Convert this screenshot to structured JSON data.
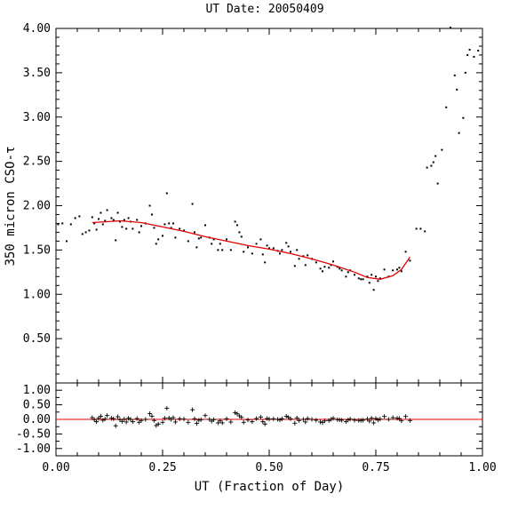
{
  "chart_data": {
    "type": "scatter",
    "title": "UT Date: 20050409",
    "xlabel": "UT (Fraction of Day)",
    "xlim": [
      0.0,
      1.0
    ],
    "x_ticks": [
      "0.00",
      "0.25",
      "0.50",
      "0.75",
      "1.00"
    ],
    "top_panel": {
      "ylabel": "350 micron CSO-τ",
      "ylim": [
        0.0,
        4.0
      ],
      "y_ticks": [
        "0.50",
        "1.00",
        "1.50",
        "2.00",
        "2.50",
        "3.00",
        "3.50",
        "4.00"
      ],
      "series": [
        {
          "values": [
            [
              0.005,
              1.79
            ],
            [
              0.015,
              1.8
            ],
            [
              0.025,
              1.6
            ],
            [
              0.035,
              1.79
            ],
            [
              0.045,
              1.86
            ],
            [
              0.055,
              1.88
            ],
            [
              0.062,
              1.68
            ],
            [
              0.07,
              1.7
            ],
            [
              0.078,
              1.72
            ],
            [
              0.085,
              1.87
            ],
            [
              0.09,
              1.8
            ],
            [
              0.095,
              1.73
            ],
            [
              0.1,
              1.85
            ],
            [
              0.105,
              1.92
            ],
            [
              0.11,
              1.79
            ],
            [
              0.115,
              1.83
            ],
            [
              0.12,
              1.95
            ],
            [
              0.13,
              1.86
            ],
            [
              0.135,
              1.84
            ],
            [
              0.14,
              1.61
            ],
            [
              0.145,
              1.92
            ],
            [
              0.15,
              1.82
            ],
            [
              0.155,
              1.76
            ],
            [
              0.16,
              1.84
            ],
            [
              0.165,
              1.74
            ],
            [
              0.17,
              1.86
            ],
            [
              0.175,
              1.82
            ],
            [
              0.18,
              1.74
            ],
            [
              0.19,
              1.84
            ],
            [
              0.195,
              1.7
            ],
            [
              0.2,
              1.77
            ],
            [
              0.21,
              1.8
            ],
            [
              0.22,
              2.0
            ],
            [
              0.225,
              1.9
            ],
            [
              0.23,
              1.75
            ],
            [
              0.235,
              1.57
            ],
            [
              0.24,
              1.62
            ],
            [
              0.25,
              1.66
            ],
            [
              0.255,
              1.79
            ],
            [
              0.26,
              2.14
            ],
            [
              0.265,
              1.8
            ],
            [
              0.27,
              1.75
            ],
            [
              0.275,
              1.8
            ],
            [
              0.28,
              1.64
            ],
            [
              0.29,
              1.74
            ],
            [
              0.3,
              1.72
            ],
            [
              0.31,
              1.6
            ],
            [
              0.32,
              2.02
            ],
            [
              0.325,
              1.7
            ],
            [
              0.33,
              1.53
            ],
            [
              0.335,
              1.63
            ],
            [
              0.34,
              1.64
            ],
            [
              0.35,
              1.78
            ],
            [
              0.36,
              1.64
            ],
            [
              0.365,
              1.57
            ],
            [
              0.37,
              1.62
            ],
            [
              0.38,
              1.5
            ],
            [
              0.385,
              1.57
            ],
            [
              0.39,
              1.5
            ],
            [
              0.4,
              1.62
            ],
            [
              0.41,
              1.5
            ],
            [
              0.42,
              1.82
            ],
            [
              0.425,
              1.78
            ],
            [
              0.43,
              1.7
            ],
            [
              0.435,
              1.65
            ],
            [
              0.44,
              1.48
            ],
            [
              0.45,
              1.53
            ],
            [
              0.46,
              1.46
            ],
            [
              0.47,
              1.57
            ],
            [
              0.48,
              1.62
            ],
            [
              0.485,
              1.45
            ],
            [
              0.49,
              1.36
            ],
            [
              0.495,
              1.55
            ],
            [
              0.5,
              1.52
            ],
            [
              0.51,
              1.52
            ],
            [
              0.52,
              1.49
            ],
            [
              0.525,
              1.46
            ],
            [
              0.53,
              1.5
            ],
            [
              0.54,
              1.58
            ],
            [
              0.545,
              1.54
            ],
            [
              0.55,
              1.48
            ],
            [
              0.56,
              1.32
            ],
            [
              0.565,
              1.5
            ],
            [
              0.57,
              1.4
            ],
            [
              0.58,
              1.43
            ],
            [
              0.585,
              1.33
            ],
            [
              0.59,
              1.44
            ],
            [
              0.6,
              1.4
            ],
            [
              0.61,
              1.36
            ],
            [
              0.62,
              1.29
            ],
            [
              0.625,
              1.26
            ],
            [
              0.63,
              1.31
            ],
            [
              0.64,
              1.3
            ],
            [
              0.645,
              1.33
            ],
            [
              0.65,
              1.37
            ],
            [
              0.66,
              1.31
            ],
            [
              0.665,
              1.29
            ],
            [
              0.67,
              1.27
            ],
            [
              0.68,
              1.2
            ],
            [
              0.685,
              1.25
            ],
            [
              0.69,
              1.27
            ],
            [
              0.7,
              1.22
            ],
            [
              0.71,
              1.18
            ],
            [
              0.715,
              1.17
            ],
            [
              0.72,
              1.17
            ],
            [
              0.73,
              1.2
            ],
            [
              0.735,
              1.13
            ],
            [
              0.74,
              1.22
            ],
            [
              0.745,
              1.05
            ],
            [
              0.75,
              1.2
            ],
            [
              0.755,
              1.15
            ],
            [
              0.76,
              1.18
            ],
            [
              0.77,
              1.28
            ],
            [
              0.78,
              1.2
            ],
            [
              0.79,
              1.27
            ],
            [
              0.8,
              1.28
            ],
            [
              0.805,
              1.3
            ],
            [
              0.81,
              1.26
            ],
            [
              0.82,
              1.48
            ],
            [
              0.83,
              1.38
            ],
            [
              0.845,
              1.74
            ],
            [
              0.855,
              1.74
            ],
            [
              0.865,
              1.71
            ],
            [
              0.87,
              2.43
            ],
            [
              0.88,
              2.45
            ],
            [
              0.885,
              2.49
            ],
            [
              0.89,
              2.56
            ],
            [
              0.895,
              2.25
            ],
            [
              0.905,
              2.63
            ],
            [
              0.915,
              3.11
            ],
            [
              0.925,
              4.01
            ],
            [
              0.935,
              3.47
            ],
            [
              0.94,
              3.31
            ],
            [
              0.945,
              2.82
            ],
            [
              0.955,
              2.99
            ],
            [
              0.96,
              3.5
            ],
            [
              0.965,
              3.7
            ],
            [
              0.97,
              3.76
            ],
            [
              0.98,
              3.68
            ],
            [
              0.99,
              3.75
            ]
          ]
        }
      ],
      "fit": {
        "x_range": [
          0.085,
          0.83
        ],
        "points": [
          [
            0.085,
            1.81
          ],
          [
            0.12,
            1.82
          ],
          [
            0.15,
            1.83
          ],
          [
            0.2,
            1.81
          ],
          [
            0.25,
            1.76
          ],
          [
            0.3,
            1.71
          ],
          [
            0.35,
            1.65
          ],
          [
            0.4,
            1.6
          ],
          [
            0.45,
            1.55
          ],
          [
            0.5,
            1.51
          ],
          [
            0.55,
            1.46
          ],
          [
            0.6,
            1.4
          ],
          [
            0.65,
            1.33
          ],
          [
            0.7,
            1.25
          ],
          [
            0.73,
            1.19
          ],
          [
            0.76,
            1.17
          ],
          [
            0.79,
            1.21
          ],
          [
            0.81,
            1.28
          ],
          [
            0.83,
            1.42
          ]
        ]
      }
    },
    "bottom_panel": {
      "ylim": [
        -1.25,
        1.25
      ],
      "y_ticks": [
        "1.00",
        "0.50",
        "0.00",
        "-0.50",
        "-1.00"
      ],
      "residuals": [
        [
          0.085,
          0.06
        ],
        [
          0.09,
          -0.01
        ],
        [
          0.095,
          -0.08
        ],
        [
          0.1,
          0.04
        ],
        [
          0.105,
          0.11
        ],
        [
          0.11,
          -0.03
        ],
        [
          0.115,
          0.01
        ],
        [
          0.12,
          0.13
        ],
        [
          0.13,
          0.04
        ],
        [
          0.135,
          0.02
        ],
        [
          0.14,
          -0.22
        ],
        [
          0.145,
          0.09
        ],
        [
          0.15,
          -0.01
        ],
        [
          0.155,
          -0.07
        ],
        [
          0.16,
          0.01
        ],
        [
          0.165,
          -0.09
        ],
        [
          0.17,
          0.04
        ],
        [
          0.175,
          0.0
        ],
        [
          0.18,
          -0.08
        ],
        [
          0.19,
          0.03
        ],
        [
          0.195,
          -0.1
        ],
        [
          0.2,
          -0.04
        ],
        [
          0.21,
          0.0
        ],
        [
          0.22,
          0.2
        ],
        [
          0.225,
          0.11
        ],
        [
          0.23,
          -0.04
        ],
        [
          0.235,
          -0.21
        ],
        [
          0.24,
          -0.16
        ],
        [
          0.25,
          -0.1
        ],
        [
          0.255,
          0.04
        ],
        [
          0.26,
          0.38
        ],
        [
          0.265,
          0.05
        ],
        [
          0.27,
          0.0
        ],
        [
          0.275,
          0.06
        ],
        [
          0.28,
          -0.09
        ],
        [
          0.29,
          0.02
        ],
        [
          0.3,
          0.01
        ],
        [
          0.31,
          -0.1
        ],
        [
          0.32,
          0.33
        ],
        [
          0.325,
          0.02
        ],
        [
          0.33,
          -0.14
        ],
        [
          0.335,
          -0.03
        ],
        [
          0.34,
          -0.01
        ],
        [
          0.35,
          0.13
        ],
        [
          0.36,
          0.0
        ],
        [
          0.365,
          -0.06
        ],
        [
          0.37,
          -0.01
        ],
        [
          0.38,
          -0.12
        ],
        [
          0.385,
          -0.05
        ],
        [
          0.39,
          -0.12
        ],
        [
          0.4,
          0.02
        ],
        [
          0.41,
          -0.09
        ],
        [
          0.42,
          0.23
        ],
        [
          0.425,
          0.19
        ],
        [
          0.43,
          0.12
        ],
        [
          0.435,
          0.07
        ],
        [
          0.44,
          -0.1
        ],
        [
          0.45,
          -0.02
        ],
        [
          0.46,
          -0.08
        ],
        [
          0.47,
          0.03
        ],
        [
          0.48,
          0.08
        ],
        [
          0.485,
          -0.08
        ],
        [
          0.49,
          -0.16
        ],
        [
          0.495,
          0.03
        ],
        [
          0.5,
          0.01
        ],
        [
          0.51,
          0.02
        ],
        [
          0.52,
          0.0
        ],
        [
          0.525,
          -0.02
        ],
        [
          0.53,
          0.02
        ],
        [
          0.54,
          0.11
        ],
        [
          0.545,
          0.07
        ],
        [
          0.55,
          0.02
        ],
        [
          0.56,
          -0.13
        ],
        [
          0.565,
          0.05
        ],
        [
          0.57,
          -0.04
        ],
        [
          0.58,
          0.0
        ],
        [
          0.585,
          -0.09
        ],
        [
          0.59,
          0.03
        ],
        [
          0.6,
          0.0
        ],
        [
          0.61,
          -0.03
        ],
        [
          0.62,
          -0.09
        ],
        [
          0.625,
          -0.11
        ],
        [
          0.63,
          -0.05
        ],
        [
          0.64,
          -0.04
        ],
        [
          0.645,
          0.0
        ],
        [
          0.65,
          0.04
        ],
        [
          0.66,
          -0.01
        ],
        [
          0.665,
          -0.02
        ],
        [
          0.67,
          -0.03
        ],
        [
          0.68,
          -0.08
        ],
        [
          0.685,
          -0.02
        ],
        [
          0.69,
          0.01
        ],
        [
          0.7,
          -0.03
        ],
        [
          0.71,
          -0.04
        ],
        [
          0.715,
          -0.04
        ],
        [
          0.72,
          -0.03
        ],
        [
          0.73,
          0.01
        ],
        [
          0.735,
          -0.06
        ],
        [
          0.74,
          0.04
        ],
        [
          0.745,
          -0.12
        ],
        [
          0.75,
          0.03
        ],
        [
          0.755,
          -0.02
        ],
        [
          0.76,
          0.01
        ],
        [
          0.77,
          0.1
        ],
        [
          0.78,
          0.0
        ],
        [
          0.79,
          0.06
        ],
        [
          0.8,
          0.04
        ],
        [
          0.805,
          0.03
        ],
        [
          0.81,
          -0.05
        ],
        [
          0.82,
          0.1
        ],
        [
          0.83,
          -0.04
        ]
      ]
    },
    "grid": false,
    "colors": {
      "points": "#000000",
      "fit": "#e00000",
      "zero_line": "#e00000"
    }
  }
}
